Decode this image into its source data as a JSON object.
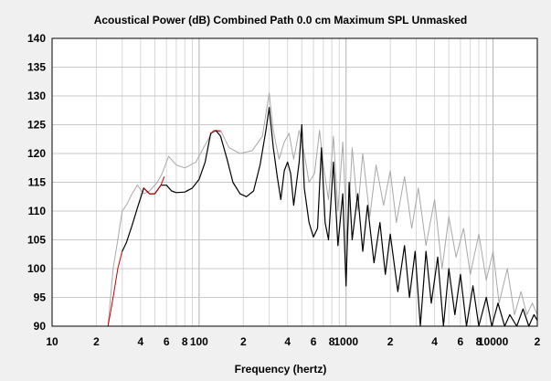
{
  "chart_data": {
    "type": "line",
    "title": "Acoustical Power (dB)   Combined   Path 0.0 cm   Maximum SPL   Unmasked",
    "xlabel": "Frequency (hertz)",
    "ylabel": "",
    "x_scale": "log",
    "xlim": [
      10,
      20000
    ],
    "ylim": [
      90,
      140
    ],
    "grid": true,
    "yticks": [
      140,
      135,
      130,
      125,
      120,
      115,
      110,
      105,
      100,
      95,
      90
    ],
    "xticks": [
      {
        "value": 10,
        "label": "10"
      },
      {
        "value": 20,
        "label": "2"
      },
      {
        "value": 40,
        "label": "4"
      },
      {
        "value": 60,
        "label": "6"
      },
      {
        "value": 80,
        "label": "8"
      },
      {
        "value": 100,
        "label": "100"
      },
      {
        "value": 200,
        "label": "2"
      },
      {
        "value": 400,
        "label": "4"
      },
      {
        "value": 600,
        "label": "6"
      },
      {
        "value": 800,
        "label": "8"
      },
      {
        "value": 1000,
        "label": "1000"
      },
      {
        "value": 2000,
        "label": "2"
      },
      {
        "value": 4000,
        "label": "4"
      },
      {
        "value": 6000,
        "label": "6"
      },
      {
        "value": 8000,
        "label": "8"
      },
      {
        "value": 10000,
        "label": "10000"
      },
      {
        "value": 20000,
        "label": "2"
      }
    ],
    "series": [
      {
        "color": "#a8a8a8",
        "points": [
          [
            24,
            90
          ],
          [
            26,
            100
          ],
          [
            28,
            105
          ],
          [
            30,
            110
          ],
          [
            32,
            111
          ],
          [
            35,
            113
          ],
          [
            38,
            114.5
          ],
          [
            42,
            113
          ],
          [
            46,
            113.5
          ],
          [
            52,
            115
          ],
          [
            56,
            116.5
          ],
          [
            62,
            119.5
          ],
          [
            70,
            118
          ],
          [
            80,
            117.5
          ],
          [
            95,
            118.5
          ],
          [
            110,
            121.5
          ],
          [
            125,
            124
          ],
          [
            140,
            124
          ],
          [
            160,
            121
          ],
          [
            190,
            120
          ],
          [
            230,
            120.5
          ],
          [
            270,
            123
          ],
          [
            300,
            130.5
          ],
          [
            320,
            124
          ],
          [
            350,
            119
          ],
          [
            380,
            122
          ],
          [
            410,
            123.5
          ],
          [
            440,
            119
          ],
          [
            480,
            124
          ],
          [
            520,
            120
          ],
          [
            560,
            115
          ],
          [
            610,
            116.5
          ],
          [
            660,
            124
          ],
          [
            700,
            118
          ],
          [
            760,
            112
          ],
          [
            820,
            123
          ],
          [
            880,
            110
          ],
          [
            950,
            122
          ],
          [
            1020,
            104
          ],
          [
            1100,
            121
          ],
          [
            1200,
            110
          ],
          [
            1300,
            120
          ],
          [
            1450,
            109
          ],
          [
            1600,
            118
          ],
          [
            1800,
            111
          ],
          [
            2000,
            117
          ],
          [
            2200,
            108
          ],
          [
            2500,
            116
          ],
          [
            2800,
            107
          ],
          [
            3100,
            114
          ],
          [
            3500,
            104
          ],
          [
            4000,
            112
          ],
          [
            4500,
            100
          ],
          [
            5000,
            109
          ],
          [
            5600,
            102
          ],
          [
            6300,
            107
          ],
          [
            7000,
            99
          ],
          [
            8000,
            106
          ],
          [
            9000,
            98
          ],
          [
            10000,
            103
          ],
          [
            11000,
            94
          ],
          [
            12500,
            100
          ],
          [
            14000,
            92
          ],
          [
            15500,
            96
          ],
          [
            17000,
            92
          ],
          [
            18500,
            94
          ],
          [
            20000,
            92
          ]
        ]
      },
      {
        "color": "#000000",
        "points": [
          [
            30,
            103
          ],
          [
            32,
            104.5
          ],
          [
            35,
            107.5
          ],
          [
            38,
            110.5
          ],
          [
            42,
            114
          ],
          [
            46,
            113
          ],
          [
            50,
            113
          ],
          [
            55,
            114.5
          ],
          [
            60,
            114.5
          ],
          [
            65,
            113.5
          ],
          [
            70,
            113.2
          ],
          [
            80,
            113.3
          ],
          [
            90,
            114
          ],
          [
            100,
            115.5
          ],
          [
            110,
            118.5
          ],
          [
            120,
            123.5
          ],
          [
            130,
            124
          ],
          [
            140,
            123
          ],
          [
            155,
            119
          ],
          [
            170,
            115
          ],
          [
            190,
            113
          ],
          [
            210,
            112.5
          ],
          [
            235,
            113.5
          ],
          [
            260,
            118
          ],
          [
            285,
            124
          ],
          [
            300,
            128
          ],
          [
            320,
            121
          ],
          [
            340,
            116
          ],
          [
            360,
            112
          ],
          [
            380,
            117
          ],
          [
            400,
            118.5
          ],
          [
            420,
            116.5
          ],
          [
            440,
            111
          ],
          [
            480,
            118.5
          ],
          [
            500,
            125
          ],
          [
            520,
            114
          ],
          [
            560,
            108
          ],
          [
            600,
            105.5
          ],
          [
            640,
            107
          ],
          [
            680,
            121
          ],
          [
            720,
            108
          ],
          [
            760,
            105
          ],
          [
            820,
            118.5
          ],
          [
            880,
            104
          ],
          [
            950,
            113
          ],
          [
            1000,
            97
          ],
          [
            1050,
            115
          ],
          [
            1100,
            105
          ],
          [
            1200,
            113
          ],
          [
            1300,
            103
          ],
          [
            1400,
            111
          ],
          [
            1550,
            101
          ],
          [
            1700,
            108
          ],
          [
            1850,
            99
          ],
          [
            2000,
            106
          ],
          [
            2250,
            96
          ],
          [
            2500,
            104
          ],
          [
            2700,
            95
          ],
          [
            2950,
            103
          ],
          [
            3200,
            90
          ],
          [
            3500,
            103
          ],
          [
            3800,
            94
          ],
          [
            4200,
            102
          ],
          [
            4600,
            90
          ],
          [
            5000,
            100
          ],
          [
            5500,
            92
          ],
          [
            6000,
            99
          ],
          [
            6600,
            90
          ],
          [
            7300,
            97
          ],
          [
            8000,
            90
          ],
          [
            9000,
            95
          ],
          [
            9800,
            90
          ],
          [
            10800,
            94
          ],
          [
            12000,
            90
          ],
          [
            13000,
            92
          ],
          [
            14500,
            90
          ],
          [
            16000,
            93
          ],
          [
            17500,
            90
          ],
          [
            19000,
            92
          ],
          [
            20000,
            91
          ]
        ]
      },
      {
        "color": "#cc0000",
        "points": [
          [
            24,
            90
          ],
          [
            26,
            95
          ],
          [
            28,
            100
          ],
          [
            30,
            103
          ]
        ]
      },
      {
        "color": "#cc0000",
        "points": [
          [
            42,
            114
          ],
          [
            46,
            113
          ],
          [
            50,
            113
          ],
          [
            55,
            114.5
          ],
          [
            58,
            116
          ]
        ]
      },
      {
        "color": "#cc0000",
        "points": [
          [
            120,
            123.5
          ],
          [
            130,
            124
          ],
          [
            140,
            123.8
          ]
        ]
      }
    ]
  }
}
